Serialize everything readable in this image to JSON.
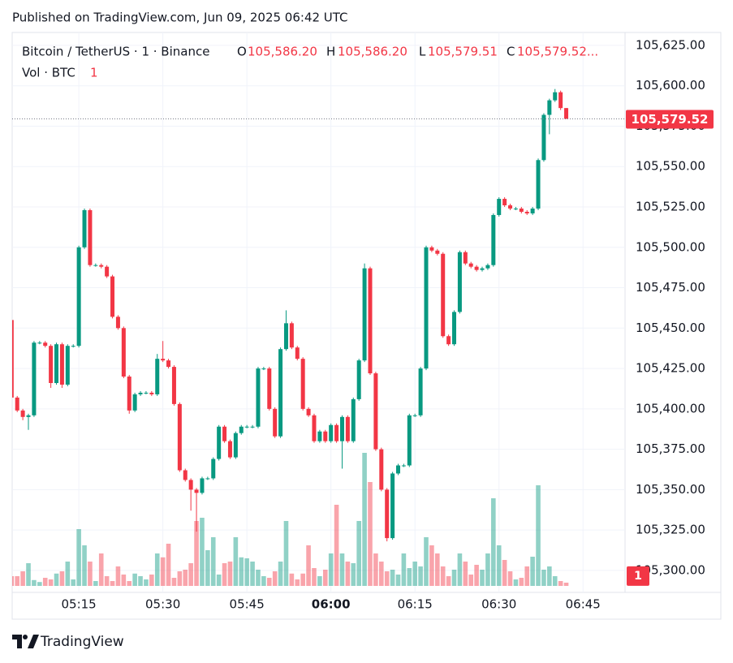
{
  "header": {
    "published": "Published on TradingView.com, Jun 09, 2025 06:42 UTC"
  },
  "footer": {
    "brand": "TradingView"
  },
  "chart_data": {
    "type": "candlestick",
    "symbol": "Bitcoin / TetherUS · 1 · Binance",
    "ohlc_legend": [
      {
        "label": "O",
        "value": "105,586.20"
      },
      {
        "label": "H",
        "value": "105,586.20"
      },
      {
        "label": "L",
        "value": "105,579.51"
      },
      {
        "label": "C",
        "value": "105,579.52..."
      }
    ],
    "volume_legend": "Vol · BTC",
    "last_price_label": "105,579.52",
    "up_color": "#089981",
    "down_color": "#f23645",
    "grid": true,
    "xlim": [
      303.1,
      412.5
    ],
    "xticks": [
      {
        "value": 315,
        "label": "05:15"
      },
      {
        "value": 330,
        "label": "05:30"
      },
      {
        "value": 345,
        "label": "05:45"
      },
      {
        "value": 360,
        "label": "06:00"
      },
      {
        "value": 375,
        "label": "06:15"
      },
      {
        "value": 390,
        "label": "06:30"
      },
      {
        "value": 405,
        "label": "06:45"
      }
    ],
    "ylim": [
      105286.4,
      105633
    ],
    "yticks": [
      {
        "value": 105625,
        "label": "105,625.00"
      },
      {
        "value": 105600,
        "label": "105,600.00"
      },
      {
        "value": 105575,
        "label": "105,575.00"
      },
      {
        "value": 105550,
        "label": "105,550.00"
      },
      {
        "value": 105525,
        "label": "105,525.00"
      },
      {
        "value": 105500,
        "label": "105,500.00"
      },
      {
        "value": 105475,
        "label": "105,475.00"
      },
      {
        "value": 105450,
        "label": "105,450.00"
      },
      {
        "value": 105425,
        "label": "105,425.00"
      },
      {
        "value": 105400,
        "label": "105,400.00"
      },
      {
        "value": 105375,
        "label": "105,375.00"
      },
      {
        "value": 105350,
        "label": "105,350.00"
      },
      {
        "value": 105325,
        "label": "105,325.00"
      },
      {
        "value": 105300,
        "label": "105,300.00"
      }
    ],
    "vlim": [
      0,
      45
    ],
    "x": [
      303,
      304,
      305,
      306,
      307,
      308,
      309,
      310,
      311,
      312,
      313,
      314,
      315,
      316,
      317,
      318,
      319,
      320,
      321,
      322,
      323,
      324,
      325,
      326,
      327,
      328,
      329,
      330,
      331,
      332,
      333,
      334,
      335,
      336,
      337,
      338,
      339,
      340,
      341,
      342,
      343,
      344,
      345,
      346,
      347,
      348,
      349,
      350,
      351,
      352,
      353,
      354,
      355,
      356,
      357,
      358,
      359,
      360,
      361,
      362,
      363,
      364,
      365,
      366,
      367,
      368,
      369,
      370,
      371,
      372,
      373,
      374,
      375,
      376,
      377,
      378,
      379,
      380,
      381,
      382,
      383,
      384,
      385,
      386,
      387,
      388,
      389,
      390,
      391,
      392,
      393,
      394,
      395,
      396,
      397,
      398,
      399,
      400,
      401,
      402
    ],
    "open": [
      105455,
      105407,
      105399,
      105395,
      105396,
      105441,
      105441,
      105439,
      105416,
      105440,
      105415,
      105439,
      105439,
      105500,
      105523,
      105489,
      105489,
      105488,
      105482,
      105457,
      105450,
      105420,
      105399,
      105409,
      105410,
      105410,
      105409,
      105431,
      105430,
      105426,
      105403,
      105362,
      105356,
      105350,
      105348,
      105357,
      105357,
      105369,
      105389,
      105380,
      105370,
      105385,
      105389,
      105389,
      105389,
      105425,
      105425,
      105400,
      105383,
      105437,
      105453,
      105438,
      105431,
      105400,
      105396,
      105380,
      105386,
      105380,
      105390,
      105380,
      105395,
      105380,
      105406,
      105430,
      105487,
      105422,
      105375,
      105350,
      105320,
      105360,
      105365,
      105365,
      105396,
      105396,
      105425,
      105500,
      105498,
      105496,
      105445,
      105440,
      105460,
      105497,
      105490,
      105488,
      105486,
      105487,
      105489,
      105520,
      105530,
      105526,
      105524,
      105524,
      105522,
      105521,
      105524,
      105554,
      105582,
      105591,
      105596,
      105586.2
    ],
    "high": [
      105457,
      105408,
      105400,
      105397,
      105442,
      105442,
      105442,
      105440,
      105441,
      105441,
      105440,
      105440,
      105501,
      105524,
      105524,
      105490,
      105490,
      105489,
      105483,
      105458,
      105451,
      105421,
      105410,
      105411,
      105411,
      105411,
      105434,
      105442,
      105431,
      105427,
      105404,
      105363,
      105357,
      105351,
      105358,
      105358,
      105370,
      105390,
      105390,
      105381,
      105386,
      105390,
      105390,
      105390,
      105426,
      105426,
      105426,
      105401,
      105438,
      105461,
      105454,
      105439,
      105432,
      105401,
      105397,
      105387,
      105387,
      105391,
      105391,
      105396,
      105396,
      105407,
      105431,
      105490,
      105488,
      105423,
      105376,
      105351,
      105361,
      105366,
      105366,
      105397,
      105397,
      105426,
      105501,
      105501,
      105499,
      105497,
      105446,
      105461,
      105498,
      105498,
      105491,
      105489,
      105488,
      105490,
      105521,
      105531,
      105531,
      105527,
      105525,
      105525,
      105523,
      105525,
      105555,
      105583,
      105592,
      105598,
      105597,
      105586.2
    ],
    "low": [
      105405,
      105398,
      105393,
      105387,
      105395,
      105440,
      105438,
      105413,
      105415,
      105413,
      105414,
      105438,
      105438,
      105499,
      105488,
      105488,
      105487,
      105481,
      105456,
      105449,
      105419,
      105397,
      105398,
      105408,
      105409,
      105408,
      105408,
      105429,
      105425,
      105402,
      105361,
      105355,
      105337,
      105324,
      105347,
      105356,
      105356,
      105368,
      105379,
      105369,
      105369,
      105384,
      105388,
      105388,
      105388,
      105424,
      105399,
      105382,
      105382,
      105436,
      105437,
      105430,
      105399,
      105395,
      105379,
      105379,
      105379,
      105379,
      105379,
      105363,
      105379,
      105379,
      105405,
      105429,
      105421,
      105374,
      105349,
      105318,
      105319,
      105359,
      105364,
      105364,
      105395,
      105395,
      105424,
      105497,
      105495,
      105444,
      105439,
      105439,
      105459,
      105489,
      105487,
      105485,
      105485,
      105486,
      105488,
      105519,
      105525,
      105523,
      105523,
      105521,
      105520,
      105520,
      105523,
      105553,
      105570,
      105590,
      105585,
      105579.51
    ],
    "close": [
      105407,
      105399,
      105395,
      105396,
      105441,
      105441,
      105439,
      105416,
      105440,
      105415,
      105439,
      105439,
      105500,
      105523,
      105489,
      105489,
      105488,
      105482,
      105457,
      105450,
      105420,
      105399,
      105409,
      105410,
      105410,
      105409,
      105431,
      105430,
      105426,
      105403,
      105362,
      105356,
      105350,
      105348,
      105357,
      105357,
      105369,
      105389,
      105380,
      105370,
      105385,
      105389,
      105389,
      105389,
      105425,
      105425,
      105400,
      105383,
      105437,
      105453,
      105438,
      105431,
      105400,
      105396,
      105380,
      105386,
      105380,
      105390,
      105380,
      105395,
      105380,
      105406,
      105430,
      105487,
      105422,
      105375,
      105350,
      105320,
      105360,
      105365,
      105365,
      105396,
      105396,
      105425,
      105500,
      105498,
      105496,
      105445,
      105440,
      105460,
      105497,
      105490,
      105488,
      105486,
      105487,
      105489,
      105520,
      105530,
      105526,
      105524,
      105524,
      105522,
      105521,
      105524,
      105554,
      105582,
      105591,
      105596,
      105586.2,
      105579.52
    ],
    "volume": [
      3,
      3,
      4.5,
      7,
      1.8,
      1.2,
      2.5,
      2,
      3.8,
      4.5,
      7.5,
      2,
      17.5,
      12.5,
      7.5,
      1.5,
      10,
      3,
      1.5,
      6,
      3.5,
      1.5,
      3.8,
      3,
      2,
      3.5,
      10,
      8.8,
      13,
      2.5,
      4.5,
      5,
      7,
      20,
      21,
      11,
      15,
      3.5,
      7,
      7.5,
      15,
      8.8,
      8.5,
      7.5,
      5,
      3,
      2.5,
      4.5,
      7.5,
      20,
      3.8,
      2,
      3.8,
      12.5,
      5.5,
      3,
      5,
      10,
      25,
      10,
      7.5,
      7,
      20,
      41,
      32,
      10,
      7.5,
      4.5,
      5,
      3.5,
      10,
      5.5,
      7.5,
      6,
      15,
      12.5,
      10,
      6,
      3,
      5,
      10,
      7.5,
      3.5,
      6.5,
      5,
      10,
      27,
      12.5,
      8,
      4.5,
      2,
      2.5,
      6,
      9,
      31,
      5,
      6,
      3,
      1.5,
      1
    ]
  }
}
